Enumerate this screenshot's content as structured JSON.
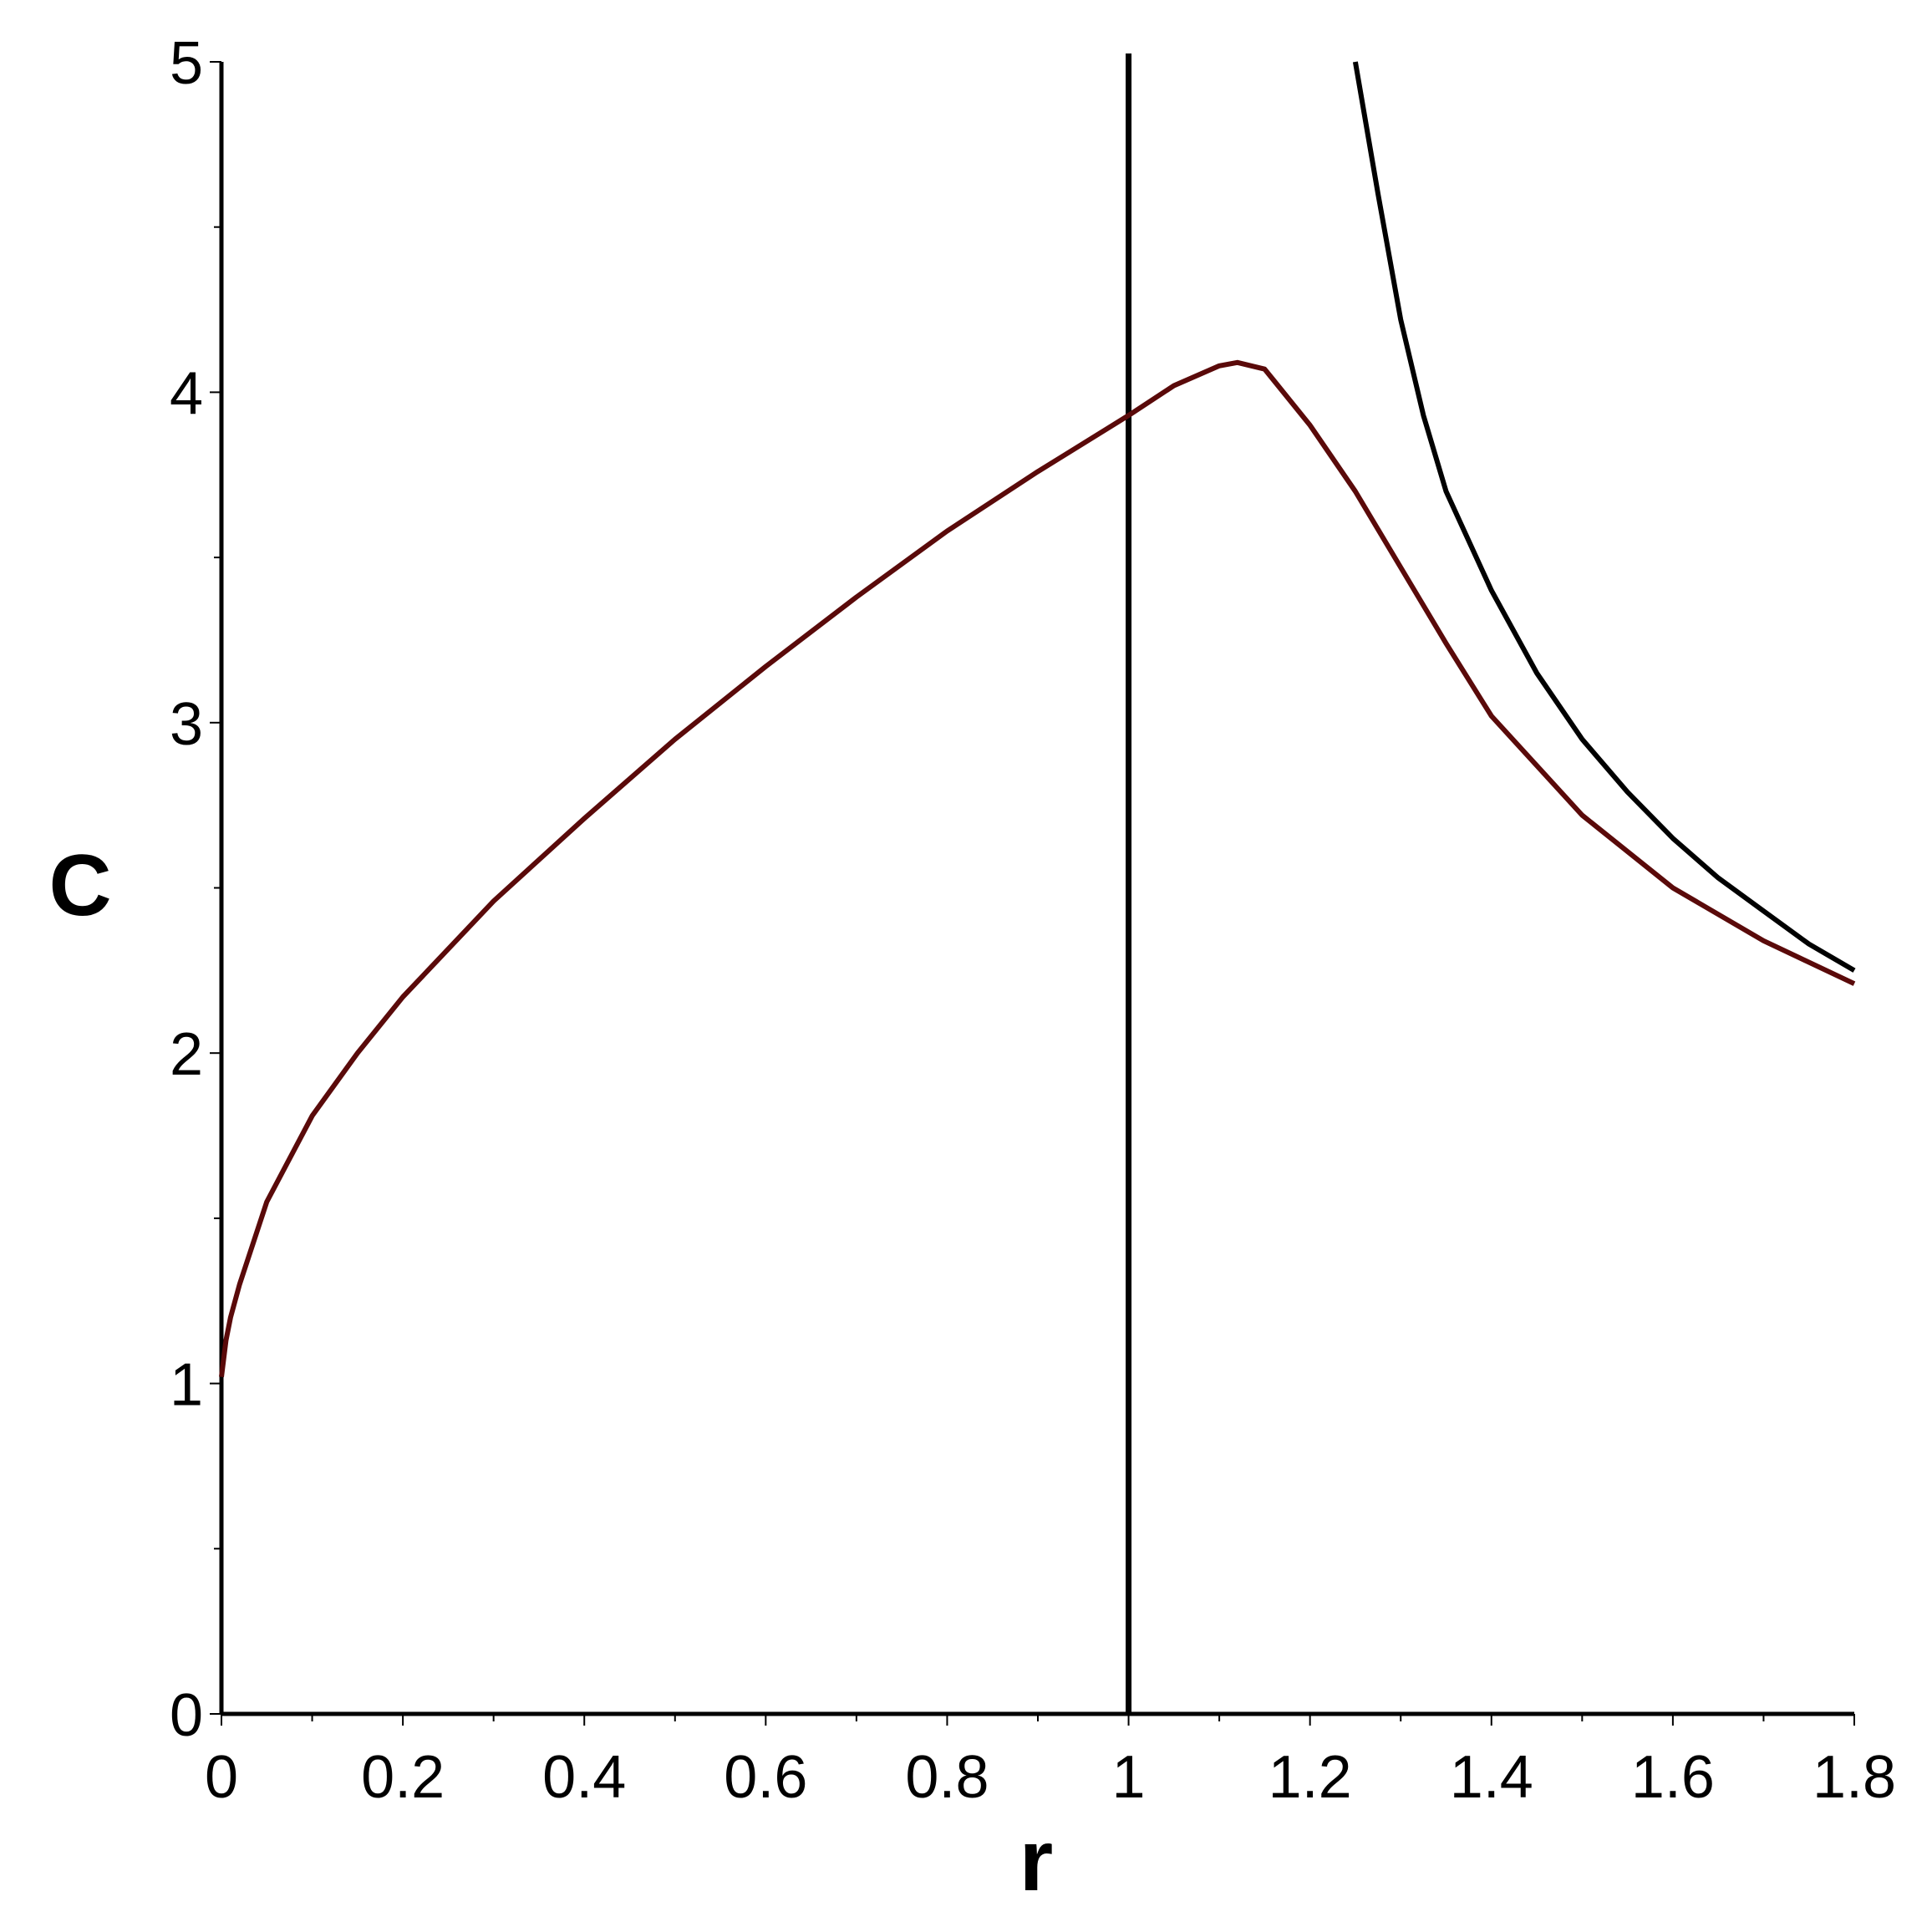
{
  "chart_data": {
    "type": "line",
    "xlabel": "r",
    "ylabel": "C",
    "xlim": [
      0,
      1.8
    ],
    "ylim": [
      0,
      5
    ],
    "xticks": [
      0,
      0.2,
      0.4,
      0.6,
      0.8,
      1,
      1.2,
      1.4,
      1.6,
      1.8
    ],
    "yticks": [
      0,
      1,
      2,
      3,
      4,
      5
    ],
    "xminorticks": [
      0.1,
      0.3,
      0.5,
      0.7,
      0.9,
      1.1,
      1.3,
      1.5,
      1.7
    ],
    "yminorticks": [
      0.5,
      1.5,
      2.5,
      3.5,
      4.5
    ],
    "vline": 1,
    "series": [
      {
        "color": "#5a0a0a",
        "x": [
          0,
          0.005,
          0.01,
          0.02,
          0.05,
          0.1,
          0.15,
          0.2,
          0.3,
          0.4,
          0.5,
          0.6,
          0.7,
          0.8,
          0.9,
          1,
          1.05,
          1.1,
          1.12,
          1.15,
          1.2,
          1.25,
          1.3,
          1.35,
          1.4,
          1.5,
          1.6,
          1.7,
          1.8
        ],
        "values": [
          1.02,
          1.13,
          1.2,
          1.3,
          1.55,
          1.81,
          2.0,
          2.17,
          2.46,
          2.71,
          2.95,
          3.17,
          3.38,
          3.58,
          3.76,
          3.93,
          4.02,
          4.08,
          4.09,
          4.07,
          3.9,
          3.7,
          3.47,
          3.24,
          3.02,
          2.72,
          2.5,
          2.34,
          2.21
        ]
      },
      {
        "color": "#000000",
        "x": [
          1.25,
          1.275,
          1.3,
          1.325,
          1.35,
          1.4,
          1.45,
          1.5,
          1.55,
          1.6,
          1.65,
          1.7,
          1.75,
          1.8
        ],
        "values": [
          5,
          4.6,
          4.22,
          3.93,
          3.7,
          3.4,
          3.15,
          2.95,
          2.79,
          2.65,
          2.53,
          2.43,
          2.33,
          2.25
        ]
      }
    ]
  }
}
